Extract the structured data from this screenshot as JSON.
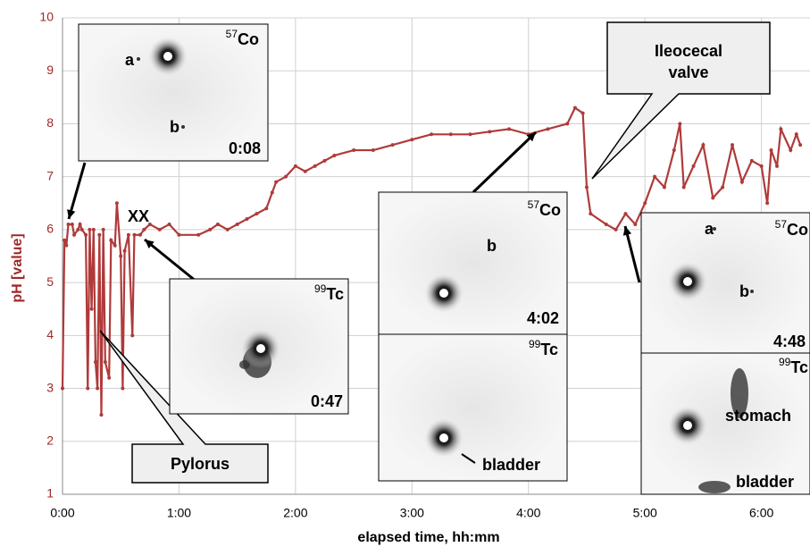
{
  "chart_data": {
    "type": "line",
    "x_label": "elapsed time, hh:mm",
    "y_label": "pH [value]",
    "xlim": [
      0,
      385
    ],
    "ylim": [
      1,
      10
    ],
    "xticks": [
      {
        "value": 0,
        "label": "0:00"
      },
      {
        "value": 60,
        "label": "1:00"
      },
      {
        "value": 120,
        "label": "2:00"
      },
      {
        "value": 180,
        "label": "3:00"
      },
      {
        "value": 240,
        "label": "4:00"
      },
      {
        "value": 300,
        "label": "5:00"
      },
      {
        "value": 360,
        "label": "6:00"
      }
    ],
    "yticks": [
      1,
      2,
      3,
      4,
      5,
      6,
      7,
      8,
      9,
      10
    ],
    "grid": true,
    "color": "#b03a3a",
    "x": [
      0,
      1,
      2,
      3,
      5,
      6,
      8,
      9,
      10,
      12,
      13,
      14,
      15,
      16,
      17,
      18,
      19,
      20,
      21,
      22,
      24,
      25,
      27,
      28,
      30,
      31,
      32,
      34,
      36,
      37,
      40,
      42,
      45,
      50,
      55,
      60,
      70,
      76,
      80,
      85,
      90,
      95,
      100,
      105,
      108,
      110,
      115,
      120,
      125,
      130,
      135,
      140,
      150,
      160,
      170,
      180,
      190,
      200,
      210,
      220,
      230,
      240,
      250,
      260,
      264,
      268,
      270,
      272,
      280,
      285,
      290,
      295,
      300,
      305,
      310,
      315,
      318,
      320,
      325,
      330,
      335,
      340,
      345,
      350,
      355,
      360,
      363,
      365,
      368,
      370,
      375,
      378,
      380
    ],
    "values": [
      3.0,
      5.8,
      5.7,
      6.1,
      6.1,
      5.9,
      6.0,
      6.1,
      6.0,
      5.9,
      3.0,
      6.0,
      4.5,
      6.0,
      3.5,
      3.0,
      5.9,
      2.5,
      6.0,
      3.5,
      3.2,
      5.8,
      5.7,
      6.5,
      5.5,
      3.0,
      5.6,
      5.9,
      4.0,
      5.9,
      5.9,
      6.0,
      6.1,
      6.0,
      6.1,
      5.9,
      5.9,
      6.0,
      6.1,
      6.0,
      6.1,
      6.2,
      6.3,
      6.4,
      6.7,
      6.9,
      7.0,
      7.2,
      7.1,
      7.2,
      7.3,
      7.4,
      7.5,
      7.5,
      7.6,
      7.7,
      7.8,
      7.8,
      7.8,
      7.85,
      7.9,
      7.8,
      7.9,
      8.0,
      8.3,
      8.2,
      6.8,
      6.3,
      6.1,
      6.0,
      6.3,
      6.1,
      6.5,
      7.0,
      6.8,
      7.5,
      8.0,
      6.8,
      7.2,
      7.6,
      6.6,
      6.8,
      7.6,
      6.9,
      7.3,
      7.2,
      6.5,
      7.5,
      7.2,
      7.9,
      7.5,
      7.8,
      7.6
    ]
  },
  "annotations": {
    "xx": "XX",
    "ileocecal": [
      "Ileocecal",
      "valve"
    ],
    "pylorus": "Pylorus"
  },
  "insets": [
    {
      "mass": "57",
      "element": "Co",
      "time": "0:08",
      "labels": [
        "a",
        "b"
      ]
    },
    {
      "mass": "99",
      "element": "Tc",
      "time": "0:47",
      "labels": []
    },
    {
      "mass": "57",
      "element": "Co",
      "time": "4:02",
      "labels": [
        "b"
      ]
    },
    {
      "mass": "99",
      "element": "Tc",
      "labels": [
        "bladder"
      ]
    },
    {
      "mass": "57",
      "element": "Co",
      "time": "4:48",
      "labels": [
        "a",
        "b"
      ]
    },
    {
      "mass": "99",
      "element": "Tc",
      "labels": [
        "stomach",
        "bladder"
      ]
    }
  ]
}
